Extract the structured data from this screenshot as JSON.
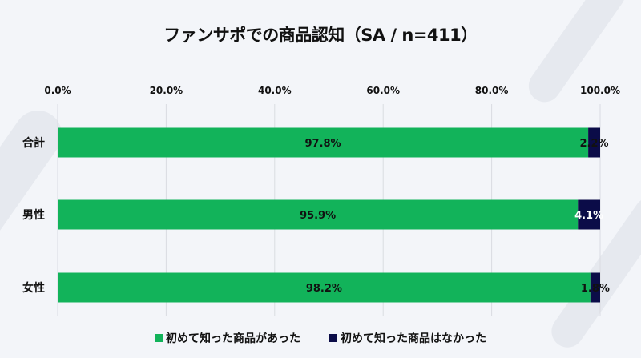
{
  "chart_data": {
    "type": "bar",
    "orientation": "horizontal",
    "stacked": true,
    "title": "ファンサポでの商品認知（SA / n=411）",
    "categories": [
      "合計",
      "男性",
      "女性"
    ],
    "series": [
      {
        "name": "初めて知った商品があった",
        "values": [
          97.8,
          95.9,
          98.2
        ],
        "labels": [
          "97.8%",
          "95.9%",
          "98.2%"
        ],
        "color": "#12b35a"
      },
      {
        "name": "初めて知った商品はなかった",
        "values": [
          2.2,
          4.1,
          1.8
        ],
        "labels": [
          "2.2%",
          "4.1%",
          "1.8%"
        ],
        "color": "#0b0c48"
      }
    ],
    "xlim": [
      0,
      100
    ],
    "xticks": [
      0,
      20,
      40,
      60,
      80,
      100
    ],
    "xtick_labels": [
      "0.0%",
      "20.0%",
      "40.0%",
      "60.0%",
      "80.0%",
      "100.0%"
    ],
    "xaxis_position": "top",
    "grid": true,
    "legend_position": "bottom"
  }
}
